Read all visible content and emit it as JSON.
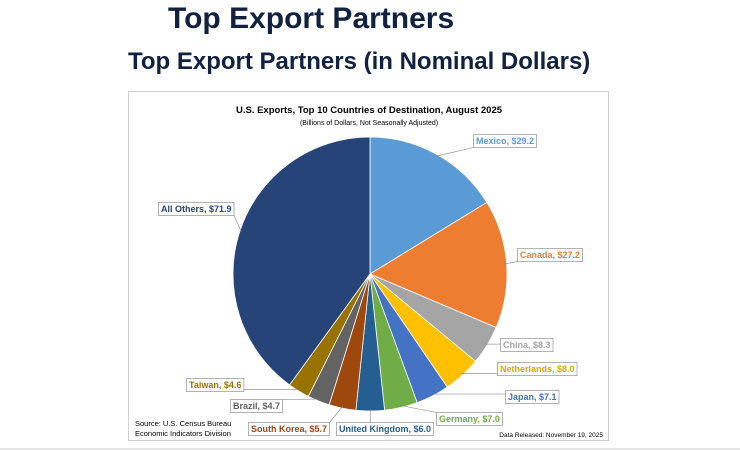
{
  "page": {
    "title": "Top Export Partners",
    "subtitle": "Top Export Partners (in Nominal Dollars)"
  },
  "chart_data": {
    "type": "pie",
    "title": "U.S. Exports, Top 10 Countries of Destination, August 2025",
    "subtitle": "(Billions of Dollars, Not Seasonally Adjusted)",
    "source": [
      "Source: U.S. Census Bureau",
      "Economic Indicators Division"
    ],
    "released": "Data Released: November 19, 2025",
    "slices": [
      {
        "label": "Mexico, $29.2",
        "name": "Mexico",
        "value": 29.2,
        "color": "#5b9bd5"
      },
      {
        "label": "Canada, $27.2",
        "name": "Canada",
        "value": 27.2,
        "color": "#ed7d31"
      },
      {
        "label": "China, $8.3",
        "name": "China",
        "value": 8.3,
        "color": "#a5a5a5"
      },
      {
        "label": "Netherlands, $8.0",
        "name": "Netherlands",
        "value": 8.0,
        "color": "#ffc000"
      },
      {
        "label": "Japan, $7.1",
        "name": "Japan",
        "value": 7.1,
        "color": "#4472c4"
      },
      {
        "label": "Germany, $7.0",
        "name": "Germany",
        "value": 7.0,
        "color": "#70ad47"
      },
      {
        "label": "United Kingdom, $6.0",
        "name": "United Kingdom",
        "value": 6.0,
        "color": "#255e91"
      },
      {
        "label": "South Korea, $5.7",
        "name": "South Korea",
        "value": 5.7,
        "color": "#9e480e"
      },
      {
        "label": "Brazil, $4.7",
        "name": "Brazil",
        "value": 4.7,
        "color": "#636363"
      },
      {
        "label": "Taiwan, $4.6",
        "name": "Taiwan",
        "value": 4.6,
        "color": "#997300"
      },
      {
        "label": "All Others, $71.9",
        "name": "All Others",
        "value": 71.9,
        "color": "#264478"
      }
    ]
  }
}
